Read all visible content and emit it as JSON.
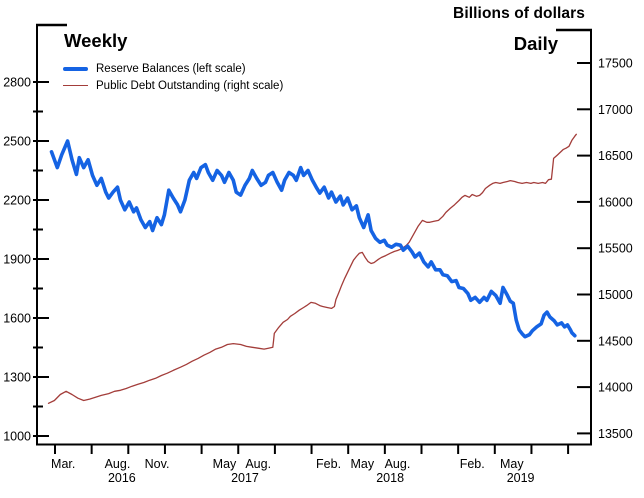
{
  "header": {
    "units_title": "Billions of dollars",
    "left_frequency": "Weekly",
    "right_frequency": "Daily"
  },
  "legend": {
    "items": [
      {
        "label": "Reserve Balances (left scale)",
        "color": "#1563e3",
        "weight": "thick"
      },
      {
        "label": "Public Debt Outstanding (right scale)",
        "color": "#a33d3a",
        "weight": "thin"
      }
    ]
  },
  "chart_data": {
    "type": "line",
    "title": "Billions of dollars",
    "subtitle_left": "Weekly",
    "subtitle_right": "Daily",
    "grid": false,
    "legend_position": "top-left",
    "left_axis": {
      "units": "Billions of dollars",
      "major_ticks": [
        2800,
        2500,
        2200,
        1900,
        1600,
        1300,
        1000
      ],
      "minor_ticks": [
        2650,
        2350,
        2050,
        1750,
        1450,
        1150
      ],
      "range": [
        955,
        3090
      ]
    },
    "right_axis": {
      "units": "Billions of dollars",
      "major_ticks": [
        17500,
        17000,
        16500,
        16000,
        15500,
        15000,
        14500,
        14000,
        13500
      ],
      "range": [
        13385,
        17855
      ]
    },
    "x_axis": {
      "range": [
        2016.04,
        2019.83
      ],
      "quarter_tick_start": 2016.164,
      "quarter_tick_step": 0.25,
      "quarter_tick_count": 15,
      "month_labels": [
        {
          "label": "Mar.",
          "t": 2016.22
        },
        {
          "label": "Aug.",
          "t": 2016.59
        },
        {
          "label": "Nov.",
          "t": 2016.86
        },
        {
          "label": "May",
          "t": 2017.32
        },
        {
          "label": "Aug.",
          "t": 2017.55
        },
        {
          "label": "Feb.",
          "t": 2018.03
        },
        {
          "label": "May",
          "t": 2018.26
        },
        {
          "label": "Aug.",
          "t": 2018.5
        },
        {
          "label": "Feb.",
          "t": 2019.01
        },
        {
          "label": "May",
          "t": 2019.28
        }
      ],
      "year_labels": [
        {
          "label": "2016",
          "t": 2016.62
        },
        {
          "label": "2017",
          "t": 2017.46
        },
        {
          "label": "2018",
          "t": 2018.45
        },
        {
          "label": "2019",
          "t": 2019.34
        }
      ]
    },
    "series": [
      {
        "name": "Reserve Balances",
        "frequency": "Weekly",
        "axis": "left",
        "color": "#1563e3",
        "stroke_width": 3.6,
        "points": [
          [
            2016.14,
            2445
          ],
          [
            2016.18,
            2365
          ],
          [
            2016.21,
            2430
          ],
          [
            2016.25,
            2500
          ],
          [
            2016.28,
            2405
          ],
          [
            2016.31,
            2330
          ],
          [
            2016.33,
            2415
          ],
          [
            2016.36,
            2365
          ],
          [
            2016.39,
            2405
          ],
          [
            2016.42,
            2325
          ],
          [
            2016.45,
            2275
          ],
          [
            2016.48,
            2310
          ],
          [
            2016.51,
            2240
          ],
          [
            2016.53,
            2210
          ],
          [
            2016.56,
            2240
          ],
          [
            2016.59,
            2265
          ],
          [
            2016.61,
            2200
          ],
          [
            2016.64,
            2150
          ],
          [
            2016.67,
            2190
          ],
          [
            2016.7,
            2140
          ],
          [
            2016.72,
            2160
          ],
          [
            2016.75,
            2100
          ],
          [
            2016.78,
            2060
          ],
          [
            2016.81,
            2090
          ],
          [
            2016.83,
            2045
          ],
          [
            2016.86,
            2110
          ],
          [
            2016.89,
            2075
          ],
          [
            2016.91,
            2125
          ],
          [
            2016.94,
            2250
          ],
          [
            2016.97,
            2210
          ],
          [
            2017.0,
            2175
          ],
          [
            2017.02,
            2140
          ],
          [
            2017.05,
            2200
          ],
          [
            2017.08,
            2300
          ],
          [
            2017.11,
            2340
          ],
          [
            2017.13,
            2310
          ],
          [
            2017.16,
            2365
          ],
          [
            2017.19,
            2380
          ],
          [
            2017.21,
            2340
          ],
          [
            2017.24,
            2300
          ],
          [
            2017.27,
            2350
          ],
          [
            2017.3,
            2325
          ],
          [
            2017.32,
            2290
          ],
          [
            2017.35,
            2340
          ],
          [
            2017.38,
            2300
          ],
          [
            2017.4,
            2240
          ],
          [
            2017.43,
            2225
          ],
          [
            2017.46,
            2275
          ],
          [
            2017.49,
            2310
          ],
          [
            2017.51,
            2350
          ],
          [
            2017.54,
            2310
          ],
          [
            2017.57,
            2275
          ],
          [
            2017.6,
            2290
          ],
          [
            2017.62,
            2325
          ],
          [
            2017.65,
            2340
          ],
          [
            2017.68,
            2290
          ],
          [
            2017.71,
            2250
          ],
          [
            2017.73,
            2300
          ],
          [
            2017.76,
            2340
          ],
          [
            2017.79,
            2325
          ],
          [
            2017.81,
            2300
          ],
          [
            2017.84,
            2365
          ],
          [
            2017.86,
            2325
          ],
          [
            2017.89,
            2350
          ],
          [
            2017.92,
            2300
          ],
          [
            2017.95,
            2260
          ],
          [
            2017.97,
            2235
          ],
          [
            2018.0,
            2265
          ],
          [
            2018.03,
            2210
          ],
          [
            2018.05,
            2240
          ],
          [
            2018.08,
            2190
          ],
          [
            2018.11,
            2220
          ],
          [
            2018.13,
            2175
          ],
          [
            2018.16,
            2210
          ],
          [
            2018.19,
            2150
          ],
          [
            2018.22,
            2170
          ],
          [
            2018.24,
            2110
          ],
          [
            2018.27,
            2060
          ],
          [
            2018.3,
            2125
          ],
          [
            2018.32,
            2045
          ],
          [
            2018.35,
            2005
          ],
          [
            2018.38,
            1985
          ],
          [
            2018.41,
            1995
          ],
          [
            2018.43,
            1970
          ],
          [
            2018.46,
            1960
          ],
          [
            2018.49,
            1975
          ],
          [
            2018.52,
            1970
          ],
          [
            2018.54,
            1945
          ],
          [
            2018.57,
            1965
          ],
          [
            2018.6,
            1935
          ],
          [
            2018.62,
            1910
          ],
          [
            2018.65,
            1930
          ],
          [
            2018.68,
            1885
          ],
          [
            2018.71,
            1860
          ],
          [
            2018.73,
            1885
          ],
          [
            2018.76,
            1845
          ],
          [
            2018.79,
            1845
          ],
          [
            2018.81,
            1820
          ],
          [
            2018.84,
            1815
          ],
          [
            2018.87,
            1785
          ],
          [
            2018.9,
            1790
          ],
          [
            2018.92,
            1755
          ],
          [
            2018.95,
            1750
          ],
          [
            2018.98,
            1725
          ],
          [
            2019.0,
            1690
          ],
          [
            2019.03,
            1705
          ],
          [
            2019.06,
            1680
          ],
          [
            2019.09,
            1705
          ],
          [
            2019.11,
            1690
          ],
          [
            2019.14,
            1735
          ],
          [
            2019.17,
            1715
          ],
          [
            2019.2,
            1675
          ],
          [
            2019.22,
            1755
          ],
          [
            2019.25,
            1715
          ],
          [
            2019.27,
            1685
          ],
          [
            2019.29,
            1675
          ],
          [
            2019.31,
            1590
          ],
          [
            2019.33,
            1540
          ],
          [
            2019.35,
            1520
          ],
          [
            2019.37,
            1505
          ],
          [
            2019.4,
            1515
          ],
          [
            2019.42,
            1535
          ],
          [
            2019.45,
            1555
          ],
          [
            2019.48,
            1570
          ],
          [
            2019.5,
            1615
          ],
          [
            2019.52,
            1630
          ],
          [
            2019.54,
            1605
          ],
          [
            2019.57,
            1585
          ],
          [
            2019.59,
            1565
          ],
          [
            2019.62,
            1575
          ],
          [
            2019.64,
            1555
          ],
          [
            2019.66,
            1565
          ],
          [
            2019.68,
            1540
          ],
          [
            2019.69,
            1525
          ],
          [
            2019.71,
            1510
          ]
        ]
      },
      {
        "name": "Public Debt Outstanding",
        "frequency": "Daily",
        "axis": "right",
        "color": "#a33d3a",
        "stroke_width": 1.3,
        "points": [
          [
            2016.12,
            13825
          ],
          [
            2016.16,
            13855
          ],
          [
            2016.2,
            13920
          ],
          [
            2016.24,
            13955
          ],
          [
            2016.28,
            13920
          ],
          [
            2016.32,
            13880
          ],
          [
            2016.36,
            13855
          ],
          [
            2016.4,
            13870
          ],
          [
            2016.44,
            13890
          ],
          [
            2016.48,
            13910
          ],
          [
            2016.53,
            13930
          ],
          [
            2016.57,
            13955
          ],
          [
            2016.61,
            13965
          ],
          [
            2016.65,
            13985
          ],
          [
            2016.69,
            14010
          ],
          [
            2016.73,
            14030
          ],
          [
            2016.77,
            14050
          ],
          [
            2016.81,
            14075
          ],
          [
            2016.85,
            14095
          ],
          [
            2016.89,
            14125
          ],
          [
            2016.93,
            14150
          ],
          [
            2016.97,
            14180
          ],
          [
            2017.02,
            14215
          ],
          [
            2017.06,
            14245
          ],
          [
            2017.1,
            14280
          ],
          [
            2017.14,
            14310
          ],
          [
            2017.18,
            14345
          ],
          [
            2017.22,
            14375
          ],
          [
            2017.26,
            14410
          ],
          [
            2017.3,
            14430
          ],
          [
            2017.34,
            14460
          ],
          [
            2017.38,
            14470
          ],
          [
            2017.43,
            14460
          ],
          [
            2017.47,
            14440
          ],
          [
            2017.51,
            14430
          ],
          [
            2017.55,
            14420
          ],
          [
            2017.59,
            14410
          ],
          [
            2017.62,
            14420
          ],
          [
            2017.65,
            14430
          ],
          [
            2017.655,
            14505
          ],
          [
            2017.66,
            14580
          ],
          [
            2017.69,
            14645
          ],
          [
            2017.72,
            14700
          ],
          [
            2017.75,
            14730
          ],
          [
            2017.77,
            14765
          ],
          [
            2017.8,
            14795
          ],
          [
            2017.83,
            14830
          ],
          [
            2017.86,
            14860
          ],
          [
            2017.88,
            14880
          ],
          [
            2017.91,
            14915
          ],
          [
            2017.94,
            14905
          ],
          [
            2017.97,
            14880
          ],
          [
            2017.99,
            14870
          ],
          [
            2018.02,
            14860
          ],
          [
            2018.05,
            14850
          ],
          [
            2018.07,
            14870
          ],
          [
            2018.08,
            14945
          ],
          [
            2018.1,
            15020
          ],
          [
            2018.12,
            15100
          ],
          [
            2018.14,
            15175
          ],
          [
            2018.16,
            15240
          ],
          [
            2018.18,
            15305
          ],
          [
            2018.2,
            15370
          ],
          [
            2018.22,
            15410
          ],
          [
            2018.24,
            15445
          ],
          [
            2018.26,
            15455
          ],
          [
            2018.28,
            15400
          ],
          [
            2018.3,
            15355
          ],
          [
            2018.32,
            15335
          ],
          [
            2018.34,
            15345
          ],
          [
            2018.37,
            15380
          ],
          [
            2018.39,
            15400
          ],
          [
            2018.42,
            15420
          ],
          [
            2018.45,
            15445
          ],
          [
            2018.48,
            15465
          ],
          [
            2018.5,
            15475
          ],
          [
            2018.53,
            15495
          ],
          [
            2018.56,
            15530
          ],
          [
            2018.58,
            15565
          ],
          [
            2018.61,
            15650
          ],
          [
            2018.64,
            15735
          ],
          [
            2018.67,
            15800
          ],
          [
            2018.7,
            15780
          ],
          [
            2018.72,
            15780
          ],
          [
            2018.75,
            15790
          ],
          [
            2018.78,
            15800
          ],
          [
            2018.81,
            15845
          ],
          [
            2018.83,
            15885
          ],
          [
            2018.86,
            15930
          ],
          [
            2018.89,
            15970
          ],
          [
            2018.92,
            16015
          ],
          [
            2018.94,
            16050
          ],
          [
            2018.96,
            16070
          ],
          [
            2018.99,
            16050
          ],
          [
            2019.01,
            16080
          ],
          [
            2019.04,
            16060
          ],
          [
            2019.06,
            16070
          ],
          [
            2019.08,
            16100
          ],
          [
            2019.1,
            16145
          ],
          [
            2019.13,
            16180
          ],
          [
            2019.15,
            16200
          ],
          [
            2019.17,
            16210
          ],
          [
            2019.2,
            16200
          ],
          [
            2019.22,
            16210
          ],
          [
            2019.25,
            16220
          ],
          [
            2019.27,
            16230
          ],
          [
            2019.3,
            16220
          ],
          [
            2019.32,
            16210
          ],
          [
            2019.35,
            16200
          ],
          [
            2019.38,
            16210
          ],
          [
            2019.41,
            16200
          ],
          [
            2019.43,
            16210
          ],
          [
            2019.46,
            16200
          ],
          [
            2019.49,
            16210
          ],
          [
            2019.51,
            16200
          ],
          [
            2019.53,
            16240
          ],
          [
            2019.55,
            16245
          ],
          [
            2019.56,
            16395
          ],
          [
            2019.565,
            16470
          ],
          [
            2019.59,
            16505
          ],
          [
            2019.61,
            16535
          ],
          [
            2019.63,
            16565
          ],
          [
            2019.65,
            16580
          ],
          [
            2019.67,
            16600
          ],
          [
            2019.69,
            16665
          ],
          [
            2019.71,
            16710
          ],
          [
            2019.72,
            16730
          ]
        ]
      }
    ]
  }
}
